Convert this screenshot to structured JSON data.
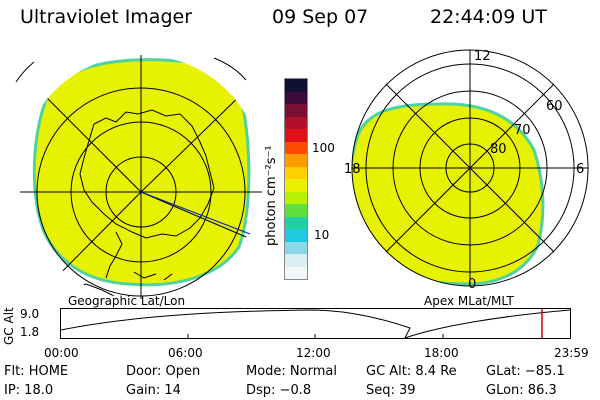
{
  "header": {
    "instrument": "Ultraviolet Imager",
    "date": "09 Sep 07",
    "time": "22:44:09 UT"
  },
  "colorbar": {
    "unit_label": "photon cm⁻²s⁻¹",
    "ticks": [
      "100",
      "10"
    ],
    "colors": [
      "#101030",
      "#3a0a3a",
      "#7a0f33",
      "#b0102a",
      "#e0101a",
      "#ff4a00",
      "#ff9a00",
      "#ffd000",
      "#eaf000",
      "#b8f000",
      "#60e040",
      "#20d0a0",
      "#20c8e0",
      "#8ad8e8",
      "#d8eef2",
      "#f2f8fa"
    ]
  },
  "left_panel": {
    "caption": "Geographic Lat/Lon",
    "fill_color": "#e6f200",
    "edge_color": "#4fd2a0"
  },
  "right_panel": {
    "caption": "Apex MLat/MLT",
    "mlt_labels": {
      "top": "12",
      "left": "18",
      "right": "6",
      "bottom": "0"
    },
    "mlat_labels": [
      "60",
      "70",
      "80"
    ],
    "fill_color": "#e6f200",
    "edge_color": "#4fd2a0"
  },
  "altitude_plot": {
    "ylabel": "GC Alt",
    "ymax_label": "9.0",
    "ymin_label": "1.8",
    "xticks": [
      "00:00",
      "06:00",
      "12:00",
      "18:00",
      "23:59"
    ],
    "marker_color": "#cc0000"
  },
  "status": {
    "flt": "Flt: HOME",
    "door": "Door: Open",
    "mode": "Mode: Normal",
    "gc_alt": "GC Alt: 8.4 Re",
    "glat": "GLat: −85.1",
    "ip": "IP: 18.0",
    "gain": "Gain: 14",
    "dsp": "Dsp:    −0.8",
    "seq": "Seq: 39",
    "glon": "GLon:  86.3"
  }
}
